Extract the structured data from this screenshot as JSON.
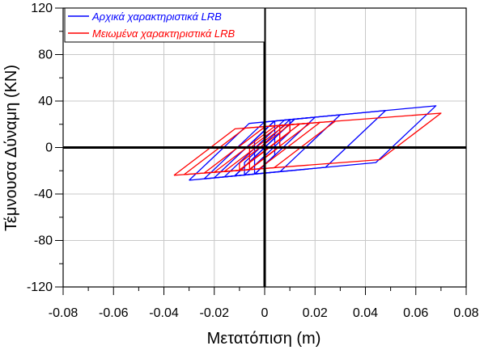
{
  "chart_data": {
    "type": "line",
    "xlabel": "Μετατόπιση (m)",
    "ylabel": "Τέμνουσα Δύναμη (KN)",
    "xlim": [
      -0.08,
      0.08
    ],
    "ylim": [
      -120,
      120
    ],
    "x_major_ticks": [
      -0.08,
      -0.06,
      -0.04,
      -0.02,
      0,
      0.02,
      0.04,
      0.06,
      0.08
    ],
    "x_tick_labels": [
      "-0.08",
      "-0.06",
      "-0.04",
      "-0.02",
      "0",
      "0.02",
      "0.04",
      "0.06",
      "0.08"
    ],
    "y_major_ticks": [
      -120,
      -80,
      -40,
      0,
      40,
      80,
      120
    ],
    "y_tick_labels": [
      "-120",
      "-80",
      "-40",
      "0",
      "40",
      "80",
      "120"
    ],
    "grid": "major, light grey",
    "zero_lines": "bold black",
    "legend_position": "top-left",
    "series": [
      {
        "name": "Αρχικά χαρακτηριστικά LRB",
        "color": "#0000ff",
        "loops": [
          {
            "x": [
              -0.004,
              0.004
            ],
            "k": 2050,
            "Q": 22
          },
          {
            "x": [
              -0.008,
              0.01
            ],
            "k": 2050,
            "Q": 22
          },
          {
            "x": [
              -0.012,
              0.012
            ],
            "k": 2050,
            "Q": 22
          },
          {
            "x": [
              -0.016,
              0.02
            ],
            "k": 2050,
            "Q": 22
          },
          {
            "x": [
              -0.02,
              0.03
            ],
            "k": 2050,
            "Q": 22
          },
          {
            "x": [
              -0.024,
              0.048
            ],
            "k": 2050,
            "Q": 22
          },
          {
            "x": [
              -0.03,
              0.068
            ],
            "k": 2050,
            "Q": 22
          }
        ]
      },
      {
        "name": "Μειωμένα χαρακτηριστικά LRB",
        "color": "#ff0000",
        "loops": [
          {
            "x": [
              -0.006,
              0.006
            ],
            "k": 1650,
            "Q": 18
          },
          {
            "x": [
              -0.01,
              0.01
            ],
            "k": 1650,
            "Q": 18
          },
          {
            "x": [
              -0.016,
              0.014
            ],
            "k": 1650,
            "Q": 18
          },
          {
            "x": [
              -0.02,
              0.018
            ],
            "k": 1650,
            "Q": 18
          },
          {
            "x": [
              -0.024,
              0.022
            ],
            "k": 1650,
            "Q": 18
          },
          {
            "x": [
              -0.032,
              0.028
            ],
            "k": 1650,
            "Q": 18
          },
          {
            "x": [
              -0.036,
              0.07
            ],
            "k": 1650,
            "Q": 18
          }
        ]
      }
    ]
  }
}
